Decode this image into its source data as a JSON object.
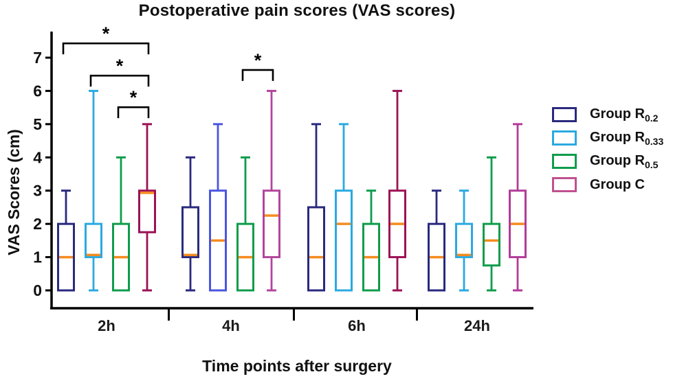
{
  "chart_data": {
    "type": "boxplot",
    "title": "Postoperative pain scores (VAS scores)",
    "xlabel": "Time points after surgery",
    "ylabel": "VAS Scores (cm)",
    "ylim": [
      0,
      7.5
    ],
    "y_ticks": [
      0,
      1,
      2,
      3,
      4,
      5,
      6,
      7
    ],
    "grid": false,
    "legend_position": "right",
    "categories": [
      "2h",
      "4h",
      "6h",
      "24h"
    ],
    "median_color": "#F68B1F",
    "axis_color": "#000000",
    "series": [
      {
        "name": "Group R0.2",
        "legend_main": "Group R",
        "legend_sub": "0.2",
        "legend_color": "#29297F",
        "colors": [
          "#29297F",
          "#29297F",
          "#29297F",
          "#29297F"
        ],
        "stats": [
          {
            "min": 0,
            "q1": 0,
            "median": 1,
            "q3": 2,
            "max": 3
          },
          {
            "min": 0,
            "q1": 1,
            "median": 1,
            "q3": 2.5,
            "max": 4
          },
          {
            "min": 0,
            "q1": 0,
            "median": 1,
            "q3": 2.5,
            "max": 5
          },
          {
            "min": 0,
            "q1": 0,
            "median": 1,
            "q3": 2,
            "max": 3
          }
        ]
      },
      {
        "name": "Group R0.33",
        "legend_main": "Group R",
        "legend_sub": "0.33",
        "legend_color": "#2AA9E1",
        "colors": [
          "#2AA9E1",
          "#4A55E0",
          "#2AA9E1",
          "#2AA9E1"
        ],
        "stats": [
          {
            "min": 0,
            "q1": 1,
            "median": 1,
            "q3": 2,
            "max": 6
          },
          {
            "min": 0,
            "q1": 0,
            "median": 1.5,
            "q3": 3,
            "max": 5
          },
          {
            "min": 0,
            "q1": 0,
            "median": 2,
            "q3": 3,
            "max": 5
          },
          {
            "min": 0,
            "q1": 1,
            "median": 1,
            "q3": 2,
            "max": 3
          }
        ]
      },
      {
        "name": "Group R0.5",
        "legend_main": "Group R",
        "legend_sub": "0.5",
        "legend_color": "#0E9C4B",
        "colors": [
          "#0E9C4B",
          "#0E9C4B",
          "#0E9C4B",
          "#0E9C4B"
        ],
        "stats": [
          {
            "min": 0,
            "q1": 0,
            "median": 1,
            "q3": 2,
            "max": 4
          },
          {
            "min": 0,
            "q1": 0,
            "median": 1,
            "q3": 2,
            "max": 4
          },
          {
            "min": 0,
            "q1": 0,
            "median": 1,
            "q3": 2,
            "max": 3
          },
          {
            "min": 0,
            "q1": 0.75,
            "median": 1.5,
            "q3": 2,
            "max": 4
          }
        ]
      },
      {
        "name": "Group C",
        "legend_main": "Group C",
        "legend_sub": "",
        "legend_color": "#C0508E",
        "colors": [
          "#9C1156",
          "#B2459B",
          "#9C1156",
          "#B23C98"
        ],
        "stats": [
          {
            "min": 0,
            "q1": 1.75,
            "median": 3,
            "q3": 3,
            "max": 5
          },
          {
            "min": 0,
            "q1": 1,
            "median": 2.25,
            "q3": 3,
            "max": 6
          },
          {
            "min": 0,
            "q1": 1,
            "median": 2,
            "q3": 3,
            "max": 6
          },
          {
            "min": 0,
            "q1": 1,
            "median": 2,
            "q3": 3,
            "max": 5
          }
        ]
      }
    ],
    "significance": [
      {
        "category": "2h",
        "cat_index": 0,
        "series_a": 0,
        "series_b": 3,
        "label": "*",
        "bar_y": 7.43
      },
      {
        "category": "2h",
        "cat_index": 0,
        "series_a": 1,
        "series_b": 3,
        "label": "*",
        "bar_y": 6.46
      },
      {
        "category": "2h",
        "cat_index": 0,
        "series_a": 2,
        "series_b": 3,
        "label": "*",
        "bar_y": 5.51
      },
      {
        "category": "4h",
        "cat_index": 1,
        "series_a": 2,
        "series_b": 3,
        "label": "*",
        "bar_y": 6.63
      }
    ]
  }
}
